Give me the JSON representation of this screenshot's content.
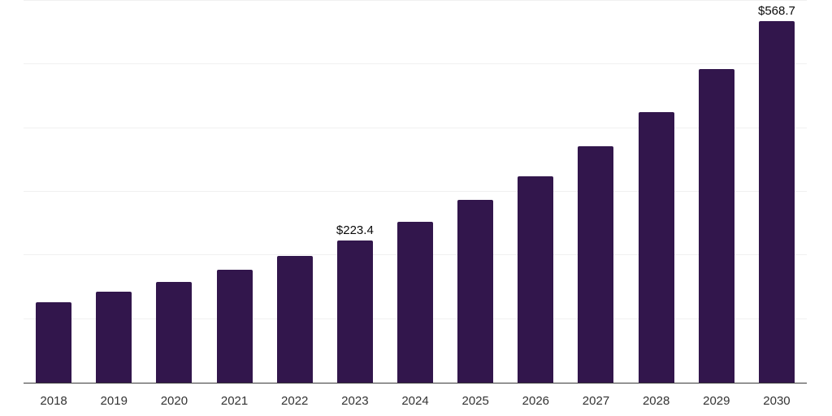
{
  "chart_data": {
    "type": "bar",
    "title": "",
    "xlabel": "",
    "ylabel": "",
    "categories": [
      "2018",
      "2019",
      "2020",
      "2021",
      "2022",
      "2023",
      "2024",
      "2025",
      "2026",
      "2027",
      "2028",
      "2029",
      "2030"
    ],
    "values": [
      126.5,
      143.1,
      158.5,
      177.6,
      199.4,
      223.4,
      253.0,
      287.5,
      324.6,
      371.9,
      425.5,
      493.3,
      568.7
    ],
    "data_labels": [
      "",
      "",
      "",
      "",
      "",
      "$223.4",
      "",
      "",
      "",
      "",
      "",
      "",
      "$568.7"
    ],
    "ylim": [
      0,
      600
    ],
    "gridline_values": [
      100,
      200,
      300,
      400,
      500,
      600
    ],
    "grid": "horizontal",
    "legend": "none",
    "colors": {
      "bar": "#32164c",
      "gridline": "#f0f0f0",
      "axis": "#3a3a3a",
      "year_label": "#333333",
      "value_label": "#0a0a0a",
      "background": "#ffffff"
    }
  }
}
